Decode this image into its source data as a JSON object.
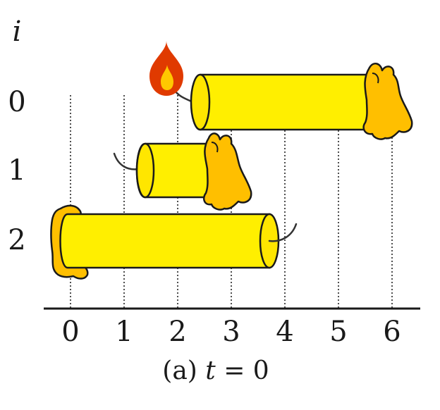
{
  "diagram": {
    "row_axis_label": "i",
    "rows": [
      {
        "index": "0",
        "candle_start": 2.3,
        "candle_end": 5.7,
        "lit": true,
        "burnt_side": "right"
      },
      {
        "index": "1",
        "candle_start": 1.25,
        "candle_end": 2.75,
        "lit": false,
        "burnt_side": "right"
      },
      {
        "index": "2",
        "candle_start": 0,
        "candle_end": 3.75,
        "lit": false,
        "burnt_side": "left"
      }
    ],
    "x_ticks": [
      "0",
      "1",
      "2",
      "3",
      "4",
      "5",
      "6"
    ],
    "caption_prefix": "(a) ",
    "caption_var": "t",
    "caption_suffix": " = 0",
    "colors": {
      "candle": "#ffef00",
      "melted_wax": "#ffbf00",
      "flame_outer": "#e03a00",
      "flame_inner": "#ffc800"
    },
    "icons": [
      "flame-icon"
    ]
  }
}
